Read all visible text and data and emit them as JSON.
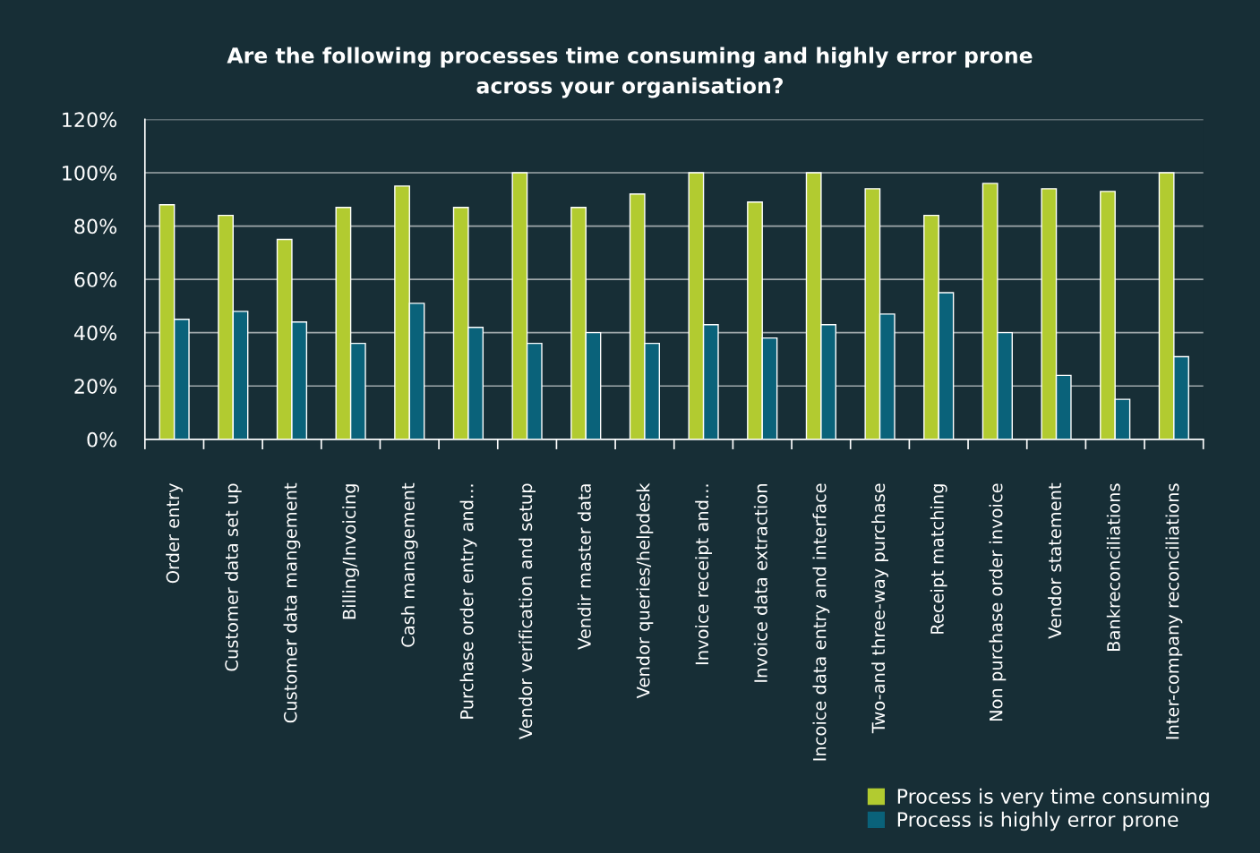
{
  "chart_data": {
    "type": "bar",
    "title": "Are the following processes time consuming and highly error prone\nacross your organisation?",
    "categories": [
      "Order entry",
      "Customer data set up",
      "Customer data mangement",
      "Billing/Invoicing",
      "Cash management",
      "Purchase order entry and...",
      "Vendor verification and setup",
      "Vendir master data",
      "Vendor queries/helpdesk",
      "Invoice receipt and...",
      "Invoice data extraction",
      "Incoice data entry and interface",
      "Two-and three-way purchase",
      "Receipt matching",
      "Non purchase order invoice",
      "Vendor statement",
      "Bankreconciliations",
      "Inter-company reconciliations"
    ],
    "series": [
      {
        "name": "Process is very time consuming",
        "color": "#b2cb30",
        "values": [
          88,
          84,
          75,
          87,
          95,
          87,
          100,
          87,
          92,
          100,
          89,
          100,
          94,
          84,
          96,
          94,
          93,
          100
        ]
      },
      {
        "name": "Process is highly error prone",
        "color": "#0a627a",
        "values": [
          45,
          48,
          44,
          36,
          51,
          42,
          36,
          40,
          36,
          43,
          38,
          43,
          47,
          55,
          40,
          24,
          15,
          31
        ]
      }
    ],
    "ylim": [
      0,
      120
    ],
    "yticks": [
      {
        "value": 0,
        "label": "0%"
      },
      {
        "value": 20,
        "label": "20%"
      },
      {
        "value": 40,
        "label": "40%"
      },
      {
        "value": 60,
        "label": "60%"
      },
      {
        "value": 80,
        "label": "80%"
      },
      {
        "value": 100,
        "label": "100%"
      },
      {
        "value": 120,
        "label": "120%"
      }
    ],
    "grid": "y",
    "legend": "bottom right"
  }
}
